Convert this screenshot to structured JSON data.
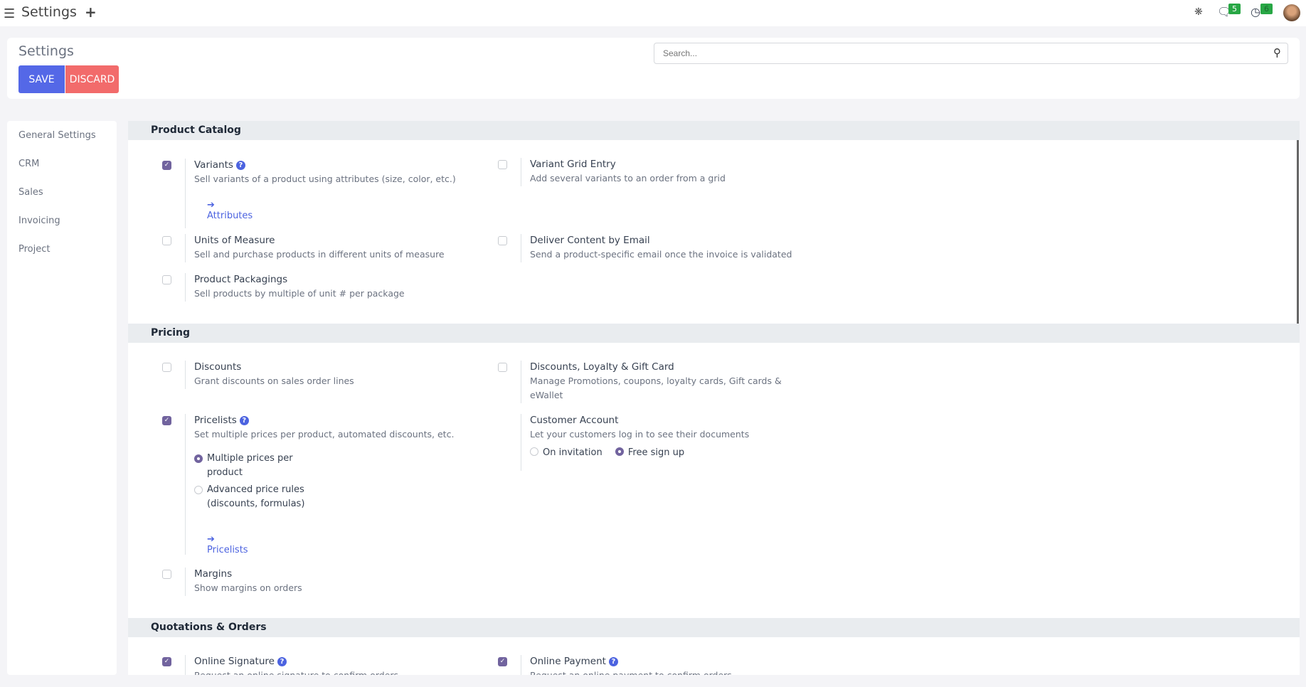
{
  "topbar": {
    "title": "Settings",
    "messages_count": "5",
    "activities_count": "6"
  },
  "header": {
    "title": "Settings",
    "save": "SAVE",
    "discard": "DISCARD",
    "search_placeholder": "Search..."
  },
  "sidebar": {
    "items": [
      {
        "label": "General Settings"
      },
      {
        "label": "CRM"
      },
      {
        "label": "Sales"
      },
      {
        "label": "Invoicing"
      },
      {
        "label": "Project"
      }
    ]
  },
  "sections": {
    "catalog": {
      "title": "Product Catalog",
      "variants": {
        "label": "Variants",
        "desc": "Sell variants of a product using attributes (size, color, etc.)",
        "link": "Attributes",
        "checked": true
      },
      "grid": {
        "label": "Variant Grid Entry",
        "desc": "Add several variants to an order from a grid",
        "checked": false
      },
      "uom": {
        "label": "Units of Measure",
        "desc": "Sell and purchase products in different units of measure",
        "checked": false
      },
      "deliver": {
        "label": "Deliver Content by Email",
        "desc": "Send a product-specific email once the invoice is validated",
        "checked": false
      },
      "packagings": {
        "label": "Product Packagings",
        "desc": "Sell products by multiple of unit # per package",
        "checked": false
      }
    },
    "pricing": {
      "title": "Pricing",
      "discounts": {
        "label": "Discounts",
        "desc": "Grant discounts on sales order lines",
        "checked": false
      },
      "loyalty": {
        "label": "Discounts, Loyalty & Gift Card",
        "desc": "Manage Promotions, coupons, loyalty cards, Gift cards & eWallet",
        "checked": false
      },
      "pricelists": {
        "label": "Pricelists",
        "desc": "Set multiple prices per product, automated discounts, etc.",
        "checked": true,
        "opt1": "Multiple prices per product",
        "opt2": "Advanced price rules (discounts, formulas)",
        "selected": "Multiple prices per product",
        "link": "Pricelists"
      },
      "customer": {
        "label": "Customer Account",
        "desc": "Let your customers log in to see their documents",
        "opt1": "On invitation",
        "opt2": "Free sign up",
        "selected": "Free sign up"
      },
      "margins": {
        "label": "Margins",
        "desc": "Show margins on orders",
        "checked": false
      }
    },
    "quotations": {
      "title": "Quotations & Orders",
      "signature": {
        "label": "Online Signature",
        "desc": "Request an online signature to confirm orders",
        "checked": true
      },
      "payment": {
        "label": "Online Payment",
        "desc": "Request an online payment to confirm orders",
        "checked": true
      }
    }
  },
  "colors": {
    "save": "#5468e7",
    "discard": "#f26b6b",
    "checkbox": "#71639e",
    "link": "#4c63e0"
  }
}
